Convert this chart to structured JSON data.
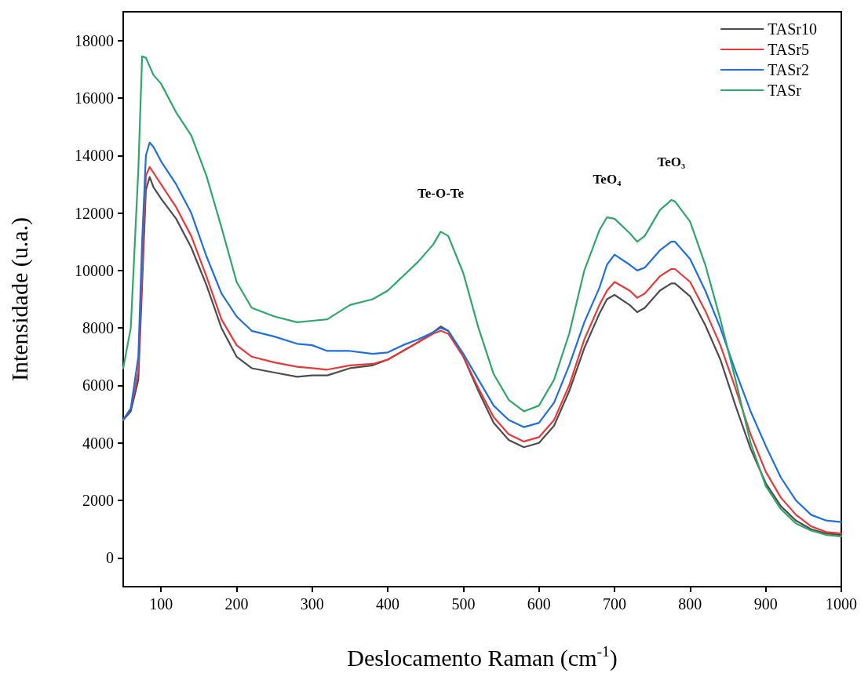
{
  "chart_data": {
    "type": "line",
    "xlabel": "Deslocamento Raman (cm$^{-1}$)",
    "ylabel": "Intensidade (u.a.)",
    "x": [
      50,
      60,
      70,
      75,
      80,
      85,
      90,
      100,
      120,
      140,
      160,
      180,
      200,
      220,
      250,
      280,
      300,
      320,
      350,
      380,
      400,
      420,
      440,
      460,
      470,
      480,
      500,
      520,
      540,
      560,
      580,
      600,
      620,
      640,
      660,
      680,
      690,
      700,
      720,
      730,
      740,
      760,
      775,
      780,
      800,
      820,
      840,
      860,
      880,
      900,
      920,
      940,
      960,
      980,
      1000
    ],
    "series": [
      {
        "name": "TASr10",
        "color": "#4d4d4d",
        "values": [
          4800,
          5100,
          6200,
          9500,
          12800,
          13250,
          12900,
          12500,
          11800,
          10800,
          9500,
          8000,
          7000,
          6600,
          6450,
          6300,
          6350,
          6350,
          6600,
          6700,
          6900,
          7200,
          7500,
          7850,
          8050,
          7900,
          7000,
          5800,
          4700,
          4100,
          3850,
          4000,
          4600,
          5800,
          7300,
          8500,
          9000,
          9150,
          8800,
          8550,
          8700,
          9300,
          9550,
          9550,
          9100,
          8100,
          6900,
          5300,
          3800,
          2600,
          1800,
          1300,
          1000,
          850,
          800
        ]
      },
      {
        "name": "TASr5",
        "color": "#e8393a",
        "values": [
          4800,
          5200,
          6500,
          10000,
          13300,
          13600,
          13400,
          13000,
          12200,
          11200,
          9800,
          8300,
          7400,
          7000,
          6800,
          6650,
          6600,
          6550,
          6700,
          6750,
          6900,
          7200,
          7500,
          7800,
          7900,
          7800,
          7000,
          5900,
          4900,
          4300,
          4050,
          4200,
          4800,
          6000,
          7600,
          8800,
          9300,
          9600,
          9300,
          9050,
          9200,
          9800,
          10050,
          10050,
          9600,
          8600,
          7400,
          5900,
          4300,
          3000,
          2100,
          1500,
          1100,
          900,
          850
        ]
      },
      {
        "name": "TASr2",
        "color": "#1f6fe0",
        "values": [
          4800,
          5200,
          7000,
          11000,
          14000,
          14450,
          14300,
          13800,
          13000,
          12000,
          10500,
          9200,
          8400,
          7900,
          7700,
          7450,
          7400,
          7200,
          7200,
          7100,
          7150,
          7400,
          7600,
          7850,
          8000,
          7900,
          7100,
          6200,
          5300,
          4800,
          4550,
          4700,
          5400,
          6700,
          8200,
          9400,
          10200,
          10550,
          10200,
          10000,
          10100,
          10700,
          11000,
          11000,
          10400,
          9300,
          8000,
          6500,
          5100,
          3900,
          2800,
          2000,
          1500,
          1300,
          1250
        ]
      },
      {
        "name": "TASr",
        "color": "#2fa66a",
        "values": [
          6600,
          8000,
          13500,
          17450,
          17400,
          17100,
          16800,
          16500,
          15500,
          14700,
          13300,
          11500,
          9600,
          8700,
          8400,
          8200,
          8250,
          8300,
          8800,
          9000,
          9300,
          9800,
          10300,
          10900,
          11350,
          11200,
          9900,
          8000,
          6400,
          5500,
          5100,
          5300,
          6200,
          7800,
          10000,
          11400,
          11850,
          11800,
          11300,
          11000,
          11200,
          12100,
          12450,
          12400,
          11700,
          10200,
          8300,
          6200,
          4000,
          2500,
          1700,
          1200,
          950,
          800,
          750
        ]
      }
    ],
    "xlim": [
      50,
      1000
    ],
    "xticks": [
      100,
      200,
      300,
      400,
      500,
      600,
      700,
      800,
      900,
      1000
    ],
    "ylim": [
      -1000,
      19000
    ],
    "yticks": [
      0,
      2000,
      4000,
      6000,
      8000,
      10000,
      12000,
      14000,
      16000,
      18000
    ],
    "annotations": [
      {
        "text": "Te-O-Te",
        "x": 470,
        "y": 11350
      },
      {
        "text": "TeO₄",
        "x": 690,
        "y": 11850
      },
      {
        "text": "TeO₃",
        "x": 775,
        "y": 12450
      }
    ],
    "legend": "top right",
    "marker": "none",
    "line_style": "solid"
  }
}
